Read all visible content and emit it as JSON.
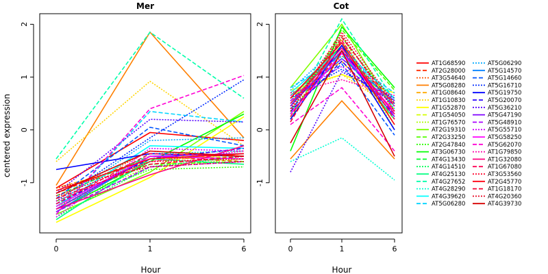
{
  "chart_data": {
    "type": "line",
    "ylabel": "centered expression",
    "xlabel": "Hour",
    "x_ticks": [
      "0",
      "1",
      "6"
    ],
    "y_ticks": [
      -1,
      0,
      1,
      2
    ],
    "ylim": [
      -1.95,
      2.2
    ],
    "legend": [
      {
        "name": "AT1G68590",
        "color": "#FF0000",
        "dash": "solid"
      },
      {
        "name": "AT2G28000",
        "color": "#FF2A00",
        "dash": "dashed"
      },
      {
        "name": "AT3G54640",
        "color": "#FF5500",
        "dash": "dotted"
      },
      {
        "name": "AT5G08280",
        "color": "#FF7F00",
        "dash": "solid"
      },
      {
        "name": "AT1G08640",
        "color": "#FFAA00",
        "dash": "dashed"
      },
      {
        "name": "AT1G10830",
        "color": "#FFD400",
        "dash": "dotted"
      },
      {
        "name": "AT1G52870",
        "color": "#FFFF00",
        "dash": "solid"
      },
      {
        "name": "AT1G54050",
        "color": "#D4FF00",
        "dash": "dashed"
      },
      {
        "name": "AT1G76570",
        "color": "#AAFF00",
        "dash": "dotted"
      },
      {
        "name": "AT2G19310",
        "color": "#80FF00",
        "dash": "solid"
      },
      {
        "name": "AT2G33250",
        "color": "#55FF00",
        "dash": "dashed"
      },
      {
        "name": "AT2G47840",
        "color": "#2AFF00",
        "dash": "dotted"
      },
      {
        "name": "AT3G06730",
        "color": "#00FF00",
        "dash": "solid"
      },
      {
        "name": "AT4G13430",
        "color": "#00FF2A",
        "dash": "dashed"
      },
      {
        "name": "AT4G14510",
        "color": "#00FF55",
        "dash": "dotted"
      },
      {
        "name": "AT4G25130",
        "color": "#00FF80",
        "dash": "solid"
      },
      {
        "name": "AT4G27652",
        "color": "#00FFAA",
        "dash": "dashed"
      },
      {
        "name": "AT4G28290",
        "color": "#00FFD4",
        "dash": "dotted"
      },
      {
        "name": "AT4G39620",
        "color": "#00FFFF",
        "dash": "solid"
      },
      {
        "name": "AT5G06280",
        "color": "#00D4FF",
        "dash": "dashed"
      },
      {
        "name": "AT5G06290",
        "color": "#00AAFF",
        "dash": "dotted"
      },
      {
        "name": "AT5G14570",
        "color": "#0080FF",
        "dash": "solid"
      },
      {
        "name": "AT5G14660",
        "color": "#0055FF",
        "dash": "dashed"
      },
      {
        "name": "AT5G16710",
        "color": "#002AFF",
        "dash": "dotted"
      },
      {
        "name": "AT5G19750",
        "color": "#0000FF",
        "dash": "solid"
      },
      {
        "name": "AT5G20070",
        "color": "#2A00FF",
        "dash": "dashed"
      },
      {
        "name": "AT5G36210",
        "color": "#5500FF",
        "dash": "dotted"
      },
      {
        "name": "AT5G47190",
        "color": "#7F00FF",
        "dash": "solid"
      },
      {
        "name": "AT5G48910",
        "color": "#AA00FF",
        "dash": "dashed"
      },
      {
        "name": "AT5G55710",
        "color": "#D400FF",
        "dash": "dotted"
      },
      {
        "name": "AT5G58250",
        "color": "#FF00FF",
        "dash": "solid"
      },
      {
        "name": "AT5G62070",
        "color": "#FF00D4",
        "dash": "dashed"
      },
      {
        "name": "AT1G79850",
        "color": "#FF00AA",
        "dash": "dotted"
      },
      {
        "name": "AT1G32080",
        "color": "#FF0080",
        "dash": "solid"
      },
      {
        "name": "AT1G67080",
        "color": "#FF0055",
        "dash": "dashed"
      },
      {
        "name": "AT3G53560",
        "color": "#FF002A",
        "dash": "dotted"
      },
      {
        "name": "AT2G45770",
        "color": "#FF0010",
        "dash": "solid"
      },
      {
        "name": "AT1G18170",
        "color": "#F50030",
        "dash": "dashed"
      },
      {
        "name": "AT4G20360",
        "color": "#E8001E",
        "dash": "dotted"
      },
      {
        "name": "AT4G39730",
        "color": "#D60000",
        "dash": "solid"
      }
    ],
    "panels": [
      {
        "title": "Mer",
        "series": [
          {
            "values": [
              -1.1,
              -0.05,
              -0.2
            ]
          },
          {
            "values": [
              -1.2,
              -0.5,
              -0.6
            ]
          },
          {
            "values": [
              -1.3,
              -0.4,
              -0.5
            ]
          },
          {
            "values": [
              -1.05,
              1.85,
              -0.15
            ]
          },
          {
            "values": [
              -1.1,
              -0.6,
              -0.45
            ]
          },
          {
            "values": [
              -0.6,
              0.92,
              -0.3
            ]
          },
          {
            "values": [
              -1.75,
              -0.9,
              0.25
            ]
          },
          {
            "values": [
              -1.5,
              -0.55,
              -0.5
            ]
          },
          {
            "values": [
              -1.4,
              -0.7,
              -0.55
            ]
          },
          {
            "values": [
              -1.6,
              -0.8,
              0.35
            ]
          },
          {
            "values": [
              -1.35,
              -0.65,
              -0.6
            ]
          },
          {
            "values": [
              -1.45,
              -0.75,
              -0.7
            ]
          },
          {
            "values": [
              -1.55,
              -0.6,
              0.3
            ]
          },
          {
            "values": [
              -1.25,
              -0.5,
              -0.45
            ]
          },
          {
            "values": [
              -1.65,
              -0.7,
              -0.5
            ]
          },
          {
            "values": [
              -1.7,
              -0.55,
              -0.65
            ]
          },
          {
            "values": [
              -0.55,
              1.85,
              0.6
            ]
          },
          {
            "values": [
              -1.5,
              -0.45,
              -0.4
            ]
          },
          {
            "values": [
              -1.45,
              -0.3,
              -0.35
            ]
          },
          {
            "values": [
              -1.6,
              0.35,
              0.15
            ]
          },
          {
            "values": [
              -1.4,
              -0.2,
              -0.15
            ]
          },
          {
            "values": [
              -1.55,
              -0.5,
              -0.55
            ]
          },
          {
            "values": [
              -1.3,
              0.05,
              -0.3
            ]
          },
          {
            "values": [
              -1.35,
              -0.15,
              0.95
            ]
          },
          {
            "values": [
              -0.75,
              -0.45,
              -0.5
            ]
          },
          {
            "values": [
              -1.4,
              -0.55,
              -0.35
            ]
          },
          {
            "values": [
              -1.2,
              0.2,
              0.15
            ]
          },
          {
            "values": [
              -1.5,
              -0.5,
              -0.45
            ]
          },
          {
            "values": [
              -1.55,
              -0.7,
              -0.6
            ]
          },
          {
            "values": [
              -1.65,
              -0.35,
              -0.4
            ]
          },
          {
            "values": [
              -1.45,
              -0.5,
              -0.55
            ]
          },
          {
            "values": [
              -1.6,
              0.4,
              1.03
            ]
          },
          {
            "values": [
              -1.35,
              -0.6,
              -0.4
            ]
          },
          {
            "values": [
              -1.5,
              -0.85,
              -0.3
            ]
          },
          {
            "values": [
              -1.4,
              -0.45,
              -0.5
            ]
          },
          {
            "values": [
              -1.25,
              -0.6,
              -0.55
            ]
          },
          {
            "values": [
              -1.15,
              -0.55,
              -0.45
            ]
          },
          {
            "values": [
              -1.3,
              -0.65,
              -0.5
            ]
          },
          {
            "values": [
              -1.1,
              -0.7,
              -0.6
            ]
          },
          {
            "values": [
              -1.2,
              -0.4,
              -0.5
            ]
          }
        ]
      },
      {
        "title": "Cot",
        "series": [
          {
            "values": [
              0.5,
              1.6,
              0.3
            ]
          },
          {
            "values": [
              0.3,
              1.5,
              0.5
            ]
          },
          {
            "values": [
              0.4,
              1.4,
              0.6
            ]
          },
          {
            "values": [
              -0.55,
              0.55,
              -0.55
            ]
          },
          {
            "values": [
              0.6,
              1.3,
              0.2
            ]
          },
          {
            "values": [
              0.7,
              1.05,
              0.4
            ]
          },
          {
            "values": [
              0.75,
              1.05,
              0.7
            ]
          },
          {
            "values": [
              0.5,
              1.7,
              0.1
            ]
          },
          {
            "values": [
              0.35,
              1.8,
              0.0
            ]
          },
          {
            "values": [
              0.8,
              2.0,
              0.35
            ]
          },
          {
            "values": [
              0.2,
              1.9,
              0.75
            ]
          },
          {
            "values": [
              0.45,
              1.75,
              0.5
            ]
          },
          {
            "values": [
              -0.4,
              1.95,
              0.8
            ]
          },
          {
            "values": [
              0.6,
              1.6,
              0.3
            ]
          },
          {
            "values": [
              0.55,
              1.5,
              0.45
            ]
          },
          {
            "values": [
              0.65,
              1.45,
              0.2
            ]
          },
          {
            "values": [
              0.3,
              2.1,
              0.55
            ]
          },
          {
            "values": [
              -0.6,
              -0.15,
              -0.95
            ]
          },
          {
            "values": [
              0.7,
              1.55,
              0.6
            ]
          },
          {
            "values": [
              0.8,
              1.4,
              0.7
            ]
          },
          {
            "values": [
              0.75,
              1.65,
              0.4
            ]
          },
          {
            "values": [
              0.5,
              1.35,
              0.55
            ]
          },
          {
            "values": [
              0.4,
              1.25,
              -0.1
            ]
          },
          {
            "values": [
              0.6,
              1.15,
              0.5
            ]
          },
          {
            "values": [
              0.2,
              1.6,
              0.0
            ]
          },
          {
            "values": [
              0.35,
              1.3,
              0.3
            ]
          },
          {
            "values": [
              -0.8,
              1.1,
              0.6
            ]
          },
          {
            "values": [
              0.45,
              1.5,
              0.25
            ]
          },
          {
            "values": [
              0.55,
              1.35,
              0.45
            ]
          },
          {
            "values": [
              0.65,
              1.2,
              0.55
            ]
          },
          {
            "values": [
              0.3,
              1.45,
              0.35
            ]
          },
          {
            "values": [
              0.1,
              0.8,
              -0.4
            ]
          },
          {
            "values": [
              0.7,
              0.95,
              0.65
            ]
          },
          {
            "values": [
              0.5,
              1.55,
              0.3
            ]
          },
          {
            "values": [
              0.25,
              1.7,
              0.2
            ]
          },
          {
            "values": [
              0.4,
              1.85,
              0.5
            ]
          },
          {
            "values": [
              0.6,
              1.65,
              0.1
            ]
          },
          {
            "values": [
              0.15,
              1.75,
              0.45
            ]
          },
          {
            "values": [
              0.35,
              1.8,
              0.35
            ]
          },
          {
            "values": [
              -0.25,
              1.5,
              -0.5
            ]
          }
        ]
      }
    ]
  }
}
